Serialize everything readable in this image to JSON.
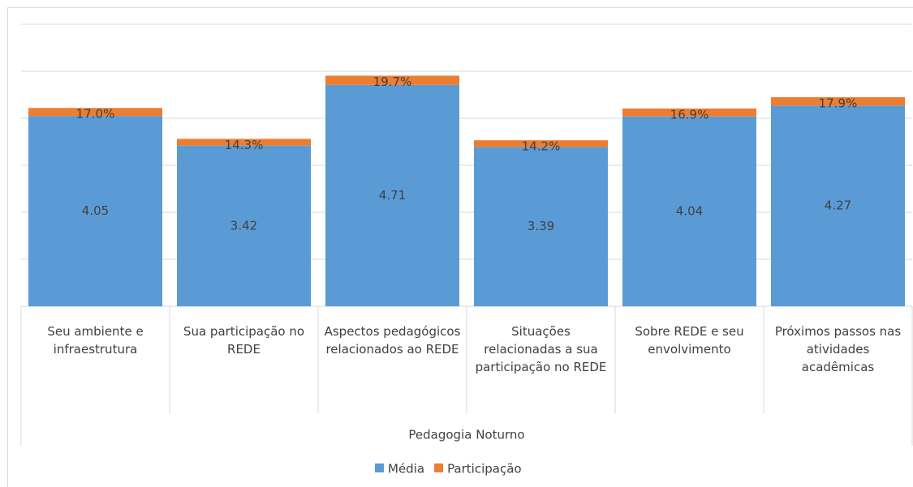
{
  "chart_data": {
    "type": "bar",
    "stacked": true,
    "categories": [
      "Seu ambiente e infraestrutura",
      "Sua participação no REDE",
      "Aspectos pedagógicos relacionados ao REDE",
      "Situações relacionadas a sua participação no REDE",
      "Sobre REDE e seu envolvimento",
      "Próximos passos nas atividades acadêmicas"
    ],
    "group_label": "Pedagogia Noturno",
    "series": [
      {
        "name": "Média",
        "color": "#5b9bd5",
        "values": [
          4.05,
          3.42,
          4.71,
          3.39,
          4.04,
          4.27
        ]
      },
      {
        "name": "Participação",
        "color": "#ed7d31",
        "values": [
          0.17,
          0.143,
          0.197,
          0.142,
          0.169,
          0.179
        ],
        "value_labels": [
          "17.0%",
          "14.3%",
          "19.7%",
          "14.2%",
          "16.9%",
          "17.9%"
        ]
      }
    ],
    "ylim": [
      0,
      6
    ],
    "yticks": [
      0,
      1,
      2,
      3,
      4,
      5,
      6
    ],
    "grid": true,
    "legend": "bottom"
  }
}
